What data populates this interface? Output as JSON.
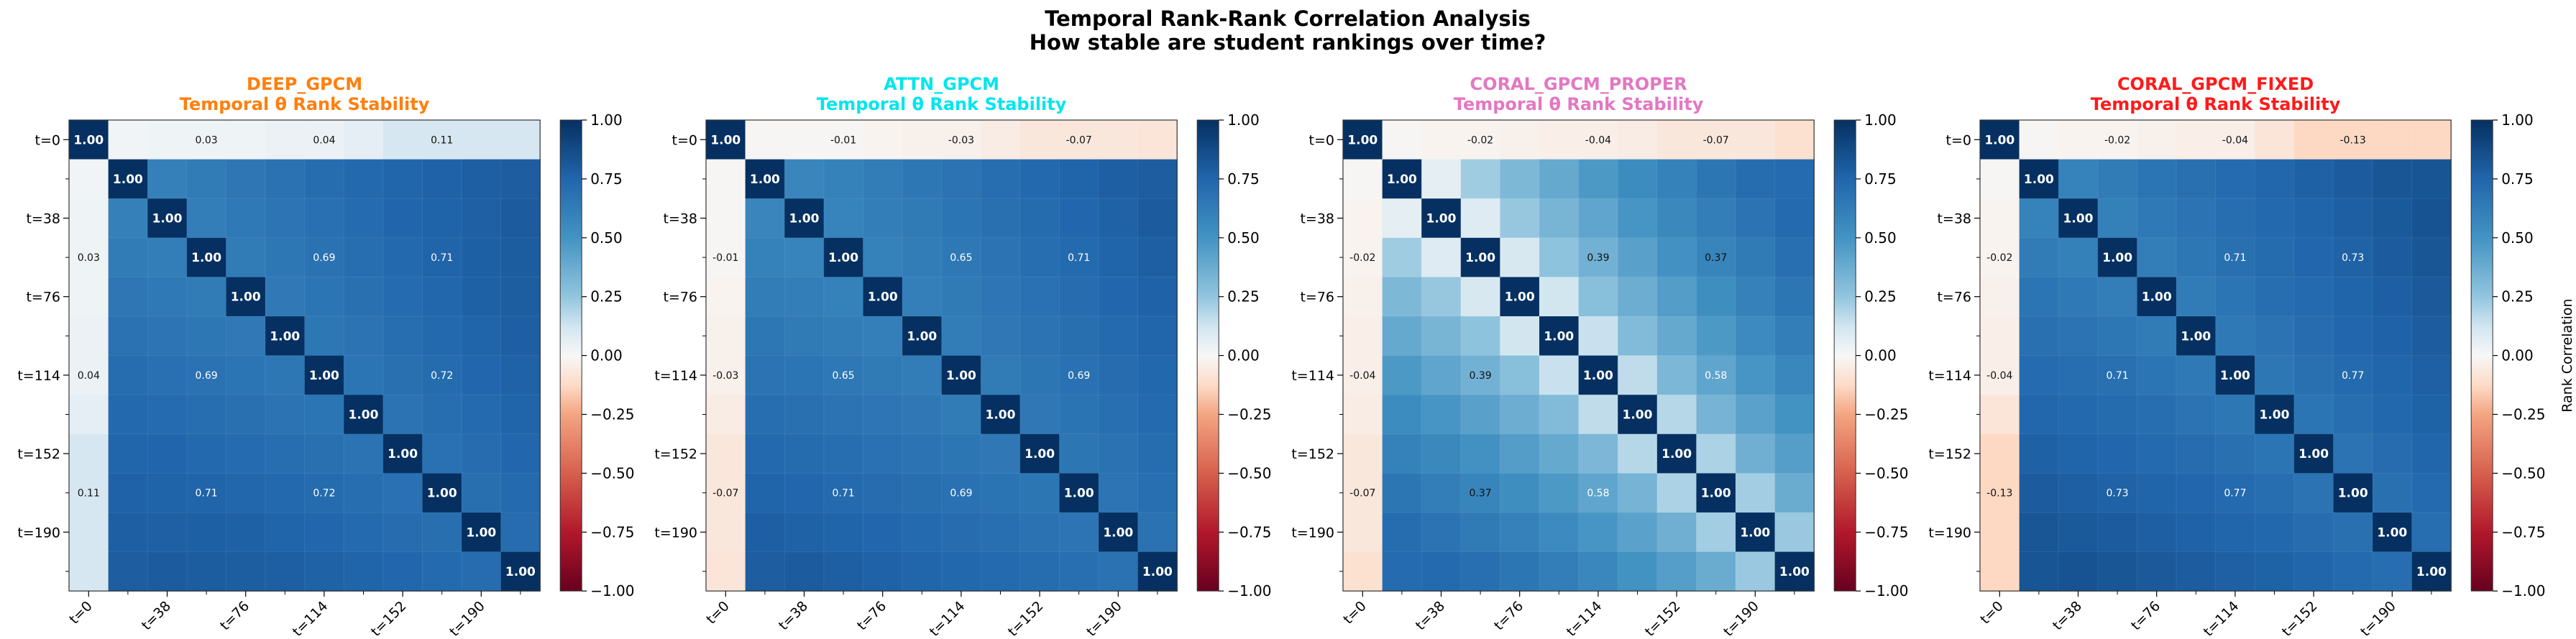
{
  "figure": {
    "title_line1": "Temporal Rank-Rank Correlation Analysis",
    "title_line2": "How stable are student rankings over time?"
  },
  "colorbar": {
    "ticks": [
      "1.00",
      "0.75",
      "0.50",
      "0.25",
      "0.00",
      "−0.25",
      "−0.50",
      "−0.75",
      "−1.00"
    ],
    "tick_values": [
      1.0,
      0.75,
      0.5,
      0.25,
      0.0,
      -0.25,
      -0.5,
      -0.75,
      -1.0
    ],
    "label": "Rank Correlation",
    "colormap": "RdBu",
    "range": [
      -1,
      1
    ]
  },
  "chart_data": [
    {
      "type": "heatmap",
      "model": "DEEP_GPCM",
      "subtitle": "Temporal θ Rank Stability",
      "title_color": "#ff7f0e",
      "y_ticks": [
        "t=0",
        "t=38",
        "t=76",
        "t=114",
        "t=152",
        "t=190"
      ],
      "x_ticks": [
        "t=0",
        "t=38",
        "t=76",
        "t=114",
        "t=152",
        "t=190"
      ],
      "diag_label": "1.00",
      "first_col": [
        1.0,
        0.02,
        0.03,
        0.03,
        0.03,
        0.04,
        0.04,
        0.06,
        0.11,
        0.11,
        0.11,
        0.11
      ],
      "printed_cells": [
        {
          "r": 0,
          "c": 3,
          "v": "0.03"
        },
        {
          "r": 0,
          "c": 6,
          "v": "0.04"
        },
        {
          "r": 0,
          "c": 9,
          "v": "0.11"
        },
        {
          "r": 3,
          "c": 0,
          "v": "0.03"
        },
        {
          "r": 6,
          "c": 0,
          "v": "0.04"
        },
        {
          "r": 9,
          "c": 0,
          "v": "0.11"
        },
        {
          "r": 3,
          "c": 6,
          "v": "0.69"
        },
        {
          "r": 3,
          "c": 9,
          "v": "0.71"
        },
        {
          "r": 6,
          "c": 3,
          "v": "0.69"
        },
        {
          "r": 6,
          "c": 9,
          "v": "0.72"
        },
        {
          "r": 9,
          "c": 3,
          "v": "0.71"
        },
        {
          "r": 9,
          "c": 6,
          "v": "0.72"
        }
      ],
      "band_values": [
        0.66,
        0.68,
        0.7,
        0.72,
        0.74,
        0.76,
        0.77,
        0.78,
        0.79
      ]
    },
    {
      "type": "heatmap",
      "model": "ATTN_GPCM",
      "subtitle": "Temporal θ Rank Stability",
      "title_color": "#00e5ee",
      "y_ticks": [
        "t=0",
        "t=38",
        "t=76",
        "t=114",
        "t=152",
        "t=190"
      ],
      "x_ticks": [
        "t=0",
        "t=38",
        "t=76",
        "t=114",
        "t=152",
        "t=190"
      ],
      "diag_label": "1.00",
      "first_col": [
        1.0,
        -0.01,
        -0.01,
        -0.01,
        -0.02,
        -0.03,
        -0.03,
        -0.05,
        -0.07,
        -0.07,
        -0.07,
        -0.08
      ],
      "printed_cells": [
        {
          "r": 0,
          "c": 3,
          "v": "-0.01"
        },
        {
          "r": 0,
          "c": 6,
          "v": "-0.03"
        },
        {
          "r": 0,
          "c": 9,
          "v": "-0.07"
        },
        {
          "r": 3,
          "c": 0,
          "v": "-0.01"
        },
        {
          "r": 6,
          "c": 0,
          "v": "-0.03"
        },
        {
          "r": 9,
          "c": 0,
          "v": "-0.07"
        },
        {
          "r": 3,
          "c": 6,
          "v": "0.65"
        },
        {
          "r": 3,
          "c": 9,
          "v": "0.71"
        },
        {
          "r": 6,
          "c": 3,
          "v": "0.65"
        },
        {
          "r": 6,
          "c": 9,
          "v": "0.69"
        },
        {
          "r": 9,
          "c": 3,
          "v": "0.71"
        },
        {
          "r": 9,
          "c": 6,
          "v": "0.69"
        }
      ],
      "band_values": [
        0.63,
        0.65,
        0.67,
        0.69,
        0.71,
        0.73,
        0.75,
        0.77,
        0.79
      ]
    },
    {
      "type": "heatmap",
      "model": "CORAL_GPCM_PROPER",
      "subtitle": "Temporal θ Rank Stability",
      "title_color": "#e377c2",
      "y_ticks": [
        "t=0",
        "t=38",
        "t=76",
        "t=114",
        "t=152",
        "t=190"
      ],
      "x_ticks": [
        "t=0",
        "t=38",
        "t=76",
        "t=114",
        "t=152",
        "t=190"
      ],
      "diag_label": "1.00",
      "first_col": [
        1.0,
        -0.01,
        -0.02,
        -0.02,
        -0.03,
        -0.04,
        -0.04,
        -0.05,
        -0.07,
        -0.07,
        -0.07,
        -0.1
      ],
      "printed_cells": [
        {
          "r": 0,
          "c": 3,
          "v": "-0.02"
        },
        {
          "r": 0,
          "c": 6,
          "v": "-0.04"
        },
        {
          "r": 0,
          "c": 9,
          "v": "-0.07"
        },
        {
          "r": 3,
          "c": 0,
          "v": "-0.02"
        },
        {
          "r": 6,
          "c": 0,
          "v": "-0.04"
        },
        {
          "r": 9,
          "c": 0,
          "v": "-0.07"
        },
        {
          "r": 3,
          "c": 6,
          "v": "0.39"
        },
        {
          "r": 3,
          "c": 9,
          "v": "0.37"
        },
        {
          "r": 6,
          "c": 3,
          "v": "0.39"
        },
        {
          "r": 6,
          "c": 9,
          "v": "0.58"
        },
        {
          "r": 9,
          "c": 3,
          "v": "0.37"
        },
        {
          "r": 9,
          "c": 6,
          "v": "0.58"
        }
      ],
      "band_values": [
        0.15,
        0.3,
        0.38,
        0.45,
        0.52,
        0.58,
        0.63,
        0.68,
        0.72
      ]
    },
    {
      "type": "heatmap",
      "model": "CORAL_GPCM_FIXED",
      "subtitle": "Temporal θ Rank Stability",
      "title_color": "#ff1a1a",
      "y_ticks": [
        "t=0",
        "t=38",
        "t=76",
        "t=114",
        "t=152",
        "t=190"
      ],
      "x_ticks": [
        "t=0",
        "t=38",
        "t=76",
        "t=114",
        "t=152",
        "t=190"
      ],
      "diag_label": "1.00",
      "first_col": [
        1.0,
        -0.01,
        -0.02,
        -0.02,
        -0.03,
        -0.04,
        -0.04,
        -0.08,
        -0.13,
        -0.13,
        -0.13,
        -0.13
      ],
      "printed_cells": [
        {
          "r": 0,
          "c": 3,
          "v": "-0.02"
        },
        {
          "r": 0,
          "c": 6,
          "v": "-0.04"
        },
        {
          "r": 0,
          "c": 9,
          "v": "-0.13"
        },
        {
          "r": 3,
          "c": 0,
          "v": "-0.02"
        },
        {
          "r": 6,
          "c": 0,
          "v": "-0.04"
        },
        {
          "r": 9,
          "c": 0,
          "v": "-0.13"
        },
        {
          "r": 3,
          "c": 6,
          "v": "0.71"
        },
        {
          "r": 3,
          "c": 9,
          "v": "0.73"
        },
        {
          "r": 6,
          "c": 3,
          "v": "0.71"
        },
        {
          "r": 6,
          "c": 9,
          "v": "0.77"
        },
        {
          "r": 9,
          "c": 3,
          "v": "0.73"
        },
        {
          "r": 9,
          "c": 6,
          "v": "0.77"
        }
      ],
      "band_values": [
        0.65,
        0.68,
        0.71,
        0.73,
        0.75,
        0.77,
        0.79,
        0.81,
        0.83
      ]
    }
  ]
}
